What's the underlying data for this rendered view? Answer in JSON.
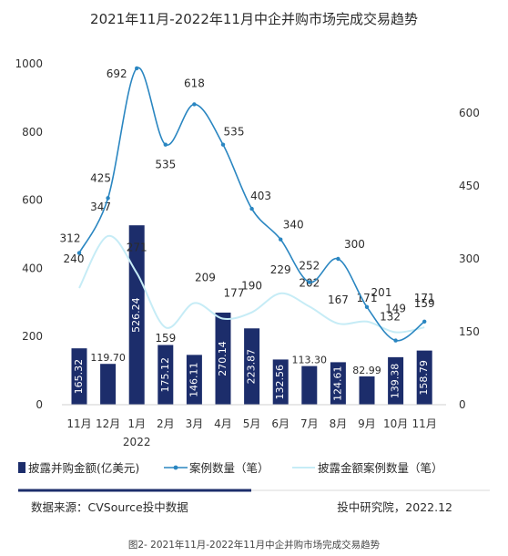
{
  "chart_data": {
    "type": "bar",
    "title": "2021年11月-2022年11月中企并购市场完成交易趋势",
    "categories": [
      "11月",
      "12月",
      "1月",
      "2月",
      "3月",
      "4月",
      "5月",
      "6月",
      "7月",
      "8月",
      "9月",
      "10月",
      "11月"
    ],
    "year_label": "2022",
    "y_left": {
      "ticks": [
        "0",
        "200",
        "400",
        "600",
        "800",
        "1000"
      ],
      "ylim": [
        0,
        1000
      ]
    },
    "y_right": {
      "ticks": [
        "0",
        "150",
        "300",
        "450",
        "600"
      ],
      "ylim": [
        0,
        700
      ]
    },
    "series": [
      {
        "name": "披露并购金额(亿美元)",
        "type": "bar",
        "axis": "left",
        "color": "#1c2d6b",
        "values": [
          165.32,
          119.7,
          526.24,
          175.12,
          146.11,
          270.14,
          223.87,
          132.56,
          113.3,
          124.61,
          82.99,
          139.38,
          158.79
        ],
        "labels": [
          "165.32",
          "119.70",
          "526.24",
          "175.12",
          "146.11",
          "270.14",
          "223.87",
          "132.56",
          "113.30",
          "124.61",
          "82.99",
          "139.38",
          "158.79"
        ]
      },
      {
        "name": "案例数量（笔）",
        "type": "line",
        "axis": "right",
        "color": "#2a86c1",
        "values": [
          312,
          425,
          692,
          535,
          618,
          535,
          403,
          340,
          252,
          300,
          201,
          132,
          171
        ],
        "labels": [
          "312",
          "425",
          "692",
          "535",
          "618",
          "535",
          "403",
          "340",
          "252",
          "300",
          "201",
          "132",
          "171"
        ]
      },
      {
        "name": "披露金额案例数量（笔）",
        "type": "line",
        "axis": "right",
        "color": "#c6ecf6",
        "values": [
          240,
          347,
          271,
          159,
          209,
          177,
          190,
          229,
          202,
          167,
          171,
          149,
          159
        ],
        "labels": [
          "240",
          "347",
          "271",
          "159",
          "209",
          "177",
          "190",
          "229",
          "202",
          "167",
          "171",
          "149",
          "159"
        ]
      }
    ],
    "legend_position": "bottom",
    "grid": false
  },
  "footer": {
    "source": "数据来源：CVSource投中数据",
    "publisher": "投中研究院，2022.12",
    "accent_color": "#1c2d6b"
  },
  "caption": "图2- 2021年11月-2022年11月中企并购市场完成交易趋势"
}
